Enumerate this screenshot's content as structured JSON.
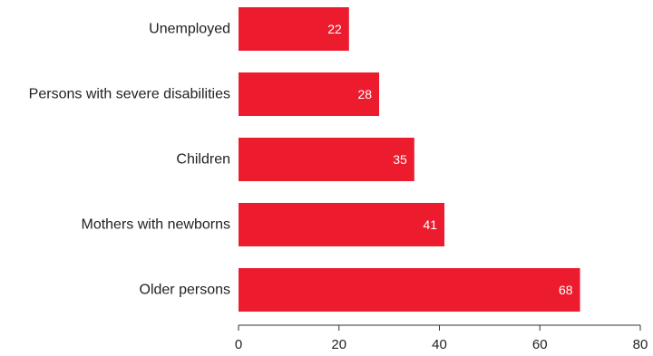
{
  "chart_data": {
    "type": "bar",
    "orientation": "horizontal",
    "categories": [
      "Unemployed",
      "Persons with severe disabilities",
      "Children",
      "Mothers with newborns",
      "Older persons"
    ],
    "values": [
      22,
      28,
      35,
      41,
      68
    ],
    "value_labels": [
      "22",
      "28",
      "35",
      "41",
      "68"
    ],
    "title": "",
    "xlabel": "",
    "ylabel": "",
    "xlim": [
      0,
      80
    ],
    "x_ticks": [
      0,
      20,
      40,
      60,
      80
    ],
    "x_tick_labels": [
      "0",
      "20",
      "40",
      "60",
      "80"
    ],
    "grid": false,
    "legend": "none",
    "colors": {
      "bar": "#ec1c2e",
      "value_label": "#ffffff",
      "text": "#222222",
      "axis": "#333333"
    }
  }
}
